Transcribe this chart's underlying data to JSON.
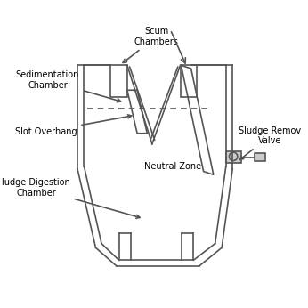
{
  "bg_color": "#ffffff",
  "line_color": "#555555",
  "lw": 1.2,
  "labels": {
    "scum": "Scum\nChambers",
    "sed": "Sedimentation\nChamber",
    "slot": "Slot Overhang",
    "sludge_dig": "ludge Digestion\nChamber",
    "neutral": "Neutral Zone",
    "sludge_rem": "Sludge Remov\nValve"
  },
  "font_size": 7
}
